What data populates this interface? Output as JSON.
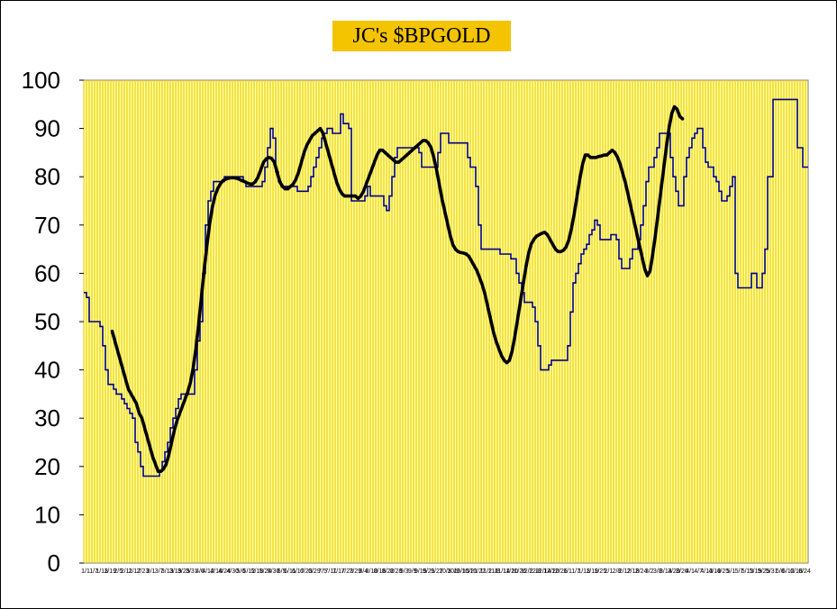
{
  "chart_data": {
    "type": "line",
    "title": "JC's $BPGOLD",
    "xlabel": "",
    "ylabel": "",
    "ylim": [
      0,
      100
    ],
    "yticks": [
      0,
      10,
      20,
      30,
      40,
      50,
      60,
      70,
      80,
      90,
      100
    ],
    "x_tick_labels": [
      "1/1",
      "1/7",
      "1/13",
      "1/19",
      "2/5",
      "2/11",
      "2/17",
      "2/23",
      "3/1",
      "3/7",
      "3/13",
      "3/19",
      "3/25",
      "3/31",
      "4/6",
      "4/12",
      "4/18",
      "4/24",
      "4/30",
      "5/6",
      "5/12",
      "5/18",
      "5/24",
      "5/30",
      "6/5",
      "6/11",
      "6/17",
      "6/23",
      "6/29",
      "7/5",
      "7/11",
      "7/17",
      "7/23",
      "7/29",
      "8/4",
      "8/10",
      "8/16",
      "8/22",
      "8/28",
      "9/3",
      "9/9",
      "9/15",
      "9/21",
      "9/27",
      "10/3",
      "10/9",
      "10/15",
      "10/21",
      "10/27",
      "11/2",
      "11/8",
      "11/14",
      "11/20",
      "11/26",
      "12/2",
      "12/8",
      "12/14",
      "12/20",
      "12/26",
      "1/1",
      "1/7",
      "1/13",
      "1/19",
      "1/25",
      "2/1",
      "2/8",
      "2/12",
      "2/18",
      "2/24",
      "3/2",
      "3/8",
      "3/14",
      "3/20",
      "3/26",
      "4/1",
      "4/7",
      "4/13",
      "4/19",
      "4/25",
      "5/1",
      "5/7",
      "5/13",
      "5/19",
      "5/25",
      "5/31",
      "6/6",
      "6/12",
      "6/18",
      "6/24"
    ],
    "grid": true,
    "plot_background": "#ffff99",
    "grid_color": "#e8c400",
    "series": [
      {
        "color": "#000080",
        "style": "stepped-thin",
        "values": [
          56,
          55,
          50,
          50,
          50,
          50,
          49,
          45,
          40,
          37,
          37,
          36,
          35,
          35,
          34,
          33,
          32,
          31,
          30,
          25,
          23,
          20,
          18,
          18,
          18,
          18,
          18,
          18,
          19,
          21,
          23,
          25,
          28,
          30,
          32,
          34,
          35,
          35,
          35,
          35,
          35,
          40,
          46,
          50,
          60,
          70,
          75,
          77,
          79,
          79,
          79,
          79,
          80,
          80,
          80,
          80,
          80,
          80,
          80,
          79,
          78,
          78,
          78,
          78,
          78,
          78,
          79,
          82,
          86,
          90,
          88,
          81,
          79,
          78,
          78,
          78,
          78,
          78,
          78,
          77,
          77,
          77,
          77,
          78,
          80,
          82,
          84,
          86,
          88,
          89,
          90,
          90,
          89,
          89,
          89,
          93,
          91,
          91,
          90,
          75,
          75,
          75,
          75,
          75,
          76,
          78,
          76,
          76,
          76,
          76,
          76,
          74,
          73,
          76,
          80,
          84,
          86,
          86,
          86,
          86,
          86,
          86,
          86,
          86,
          85,
          82,
          82,
          82,
          82,
          82,
          82,
          85,
          89,
          89,
          89,
          87,
          87,
          87,
          87,
          87,
          87,
          87,
          84,
          82,
          82,
          78,
          70,
          65,
          65,
          65,
          65,
          65,
          65,
          65,
          64,
          64,
          64,
          64,
          63,
          63,
          60,
          58,
          56,
          54,
          54,
          54,
          53,
          50,
          45,
          40,
          40,
          40,
          41,
          42,
          42,
          42,
          42,
          42,
          42,
          45,
          52,
          58,
          60,
          62,
          64,
          65,
          66,
          68,
          69,
          71,
          70,
          67,
          67,
          67,
          67,
          68,
          68,
          67,
          63,
          61,
          61,
          61,
          63,
          65,
          65,
          67,
          70,
          74,
          79,
          82,
          82,
          84,
          86,
          89,
          89,
          89,
          89,
          84,
          80,
          77,
          74,
          74,
          80,
          84,
          86,
          88,
          89,
          90,
          90,
          86,
          83,
          82,
          82,
          80,
          79,
          77,
          75,
          75,
          76,
          78,
          80,
          60,
          57,
          57,
          57,
          57,
          57,
          60,
          60,
          57,
          57,
          60,
          65,
          80,
          80,
          96,
          96,
          96,
          96,
          96,
          96,
          96,
          96,
          96,
          86,
          86,
          82,
          82
        ]
      },
      {
        "color": "#000000",
        "style": "smoothed-thick",
        "values": [
          null,
          null,
          null,
          null,
          null,
          null,
          null,
          null,
          null,
          null,
          48,
          46,
          44,
          42,
          40,
          38,
          36,
          35,
          34,
          33,
          31,
          30,
          28,
          26,
          24,
          22,
          20.5,
          19,
          19,
          19.5,
          20.5,
          22.5,
          25,
          27.5,
          29.5,
          31,
          32.5,
          34,
          35.5,
          37.5,
          40.5,
          44.5,
          49.5,
          55,
          60.5,
          65.5,
          70,
          73.5,
          76,
          77.5,
          78.5,
          79.2,
          79.5,
          79.7,
          79.8,
          79.8,
          79.7,
          79.5,
          79.2,
          79,
          78.7,
          78.5,
          78.5,
          79,
          80,
          81.5,
          83,
          83.7,
          84,
          83.8,
          83,
          81,
          79,
          78,
          77.5,
          77.5,
          78,
          78.5,
          79.5,
          81,
          83,
          85,
          86.5,
          87.5,
          88.5,
          89,
          89.5,
          90,
          89,
          87,
          85,
          83,
          81,
          79,
          77.5,
          76.5,
          76,
          76,
          76,
          76,
          76,
          75.5,
          76,
          77,
          78.5,
          80,
          81.5,
          83,
          84.5,
          85.5,
          85.5,
          85,
          84.5,
          84,
          83.5,
          83,
          83,
          83.5,
          84,
          84.5,
          85,
          85.5,
          86,
          86.5,
          87,
          87.5,
          87.5,
          87,
          86,
          84,
          81.5,
          78.5,
          75.5,
          73,
          70.5,
          68,
          66,
          65,
          64.5,
          64.3,
          64.2,
          64,
          63.5,
          62.5,
          61.5,
          60.5,
          59,
          57.5,
          55.5,
          53,
          50.5,
          48,
          46,
          44.5,
          43,
          42,
          41.5,
          42,
          44,
          47,
          50.5,
          54,
          57.5,
          61,
          64,
          66,
          67,
          67.7,
          68,
          68.3,
          68.5,
          68,
          67,
          66,
          65,
          64.5,
          64.5,
          64.8,
          65.5,
          67,
          69.5,
          72.5,
          76,
          79.5,
          82.5,
          84.5,
          84.5,
          84,
          84,
          84,
          84.2,
          84.3,
          84.5,
          84.5,
          85,
          85.5,
          85,
          84,
          82.5,
          80.5,
          78.5,
          76,
          73.5,
          71,
          68.5,
          66,
          63.5,
          61,
          59.5,
          60.5,
          64,
          68,
          72.5,
          77,
          81.5,
          86,
          90,
          93,
          94.5,
          94,
          92.5,
          92
        ]
      }
    ]
  }
}
